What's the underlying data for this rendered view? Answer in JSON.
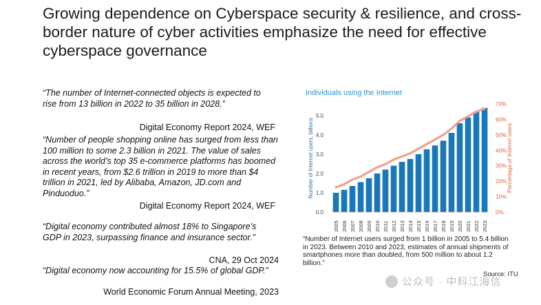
{
  "title": "Growing dependence on Cyberspace security & resilience, and cross-border nature of cyber activities emphasize the need for effective cyberspace governance",
  "quotes": [
    {
      "text": "“The number of Internet-connected objects is expected to rise from 13 billion in 2022 to 35 billion in 2028.”",
      "source": "Digital Economy Report 2024, WEF"
    },
    {
      "text": "“Number of people shopping online has surged from less than 100 million to some 2.3 billion in 2021. The value of sales across the world’s top 35 e-commerce platforms has boomed in recent years, from $2.6 trillion in 2019 to more than $4 trillion in 2021, led by Alibaba, Amazon, JD.com and Pinduoduo.”",
      "source": "Digital Economy Report 2024, WEF"
    },
    {
      "text": "“Digital economy contributed almost 18% to Singapore’s GDP in 2023, surpassing finance and insurance sector.”",
      "source": "CNA, 29 Oct 2024"
    },
    {
      "text": "“Digital economy now accounting for 15.5% of global GDP.”",
      "source": "World Economic Forum Annual Meeting, 2023"
    }
  ],
  "chart_data": {
    "type": "bar",
    "title": "Individuals using the Internet",
    "categories": [
      "2005",
      "2006",
      "2007",
      "2008",
      "2009",
      "2010",
      "2011",
      "2012",
      "2013",
      "2014",
      "2015",
      "2016",
      "2017",
      "2018",
      "2019",
      "2020",
      "2021",
      "2022",
      "2023"
    ],
    "series": [
      {
        "name": "Number of Internet users, billions",
        "type": "bar",
        "axis": "left",
        "values": [
          1.0,
          1.15,
          1.35,
          1.55,
          1.75,
          2.0,
          2.2,
          2.4,
          2.6,
          2.75,
          3.0,
          3.25,
          3.45,
          3.7,
          4.1,
          4.6,
          4.9,
          5.2,
          5.4
        ]
      },
      {
        "name": "Percentage of Internet users",
        "type": "line",
        "axis": "right",
        "values": [
          16,
          18,
          21,
          23,
          26,
          29,
          31,
          34,
          36,
          38,
          41,
          44,
          47,
          50,
          54,
          59,
          62,
          65,
          67
        ]
      }
    ],
    "ylabel": "Number of Internet users, billions",
    "y2label": "Percentage of Internet users",
    "ylim": [
      0,
      5.6
    ],
    "y2lim": [
      0,
      70
    ],
    "yticks": [
      "0.0",
      "1.0",
      "2.0",
      "3.0",
      "4.0",
      "5.0"
    ],
    "y2ticks": [
      "0%",
      "10%",
      "20%",
      "30%",
      "40%",
      "50%",
      "60%",
      "70%"
    ],
    "colors": {
      "bar": "#1a78b8",
      "line": "#f0a08c",
      "y2text": "#e0603a",
      "title": "#2f8fd4"
    }
  },
  "chart_caption": "“Number of Internet users surged from 1 billion in 2005 to 5.4 billion in 2023. Between 2010 and 2023, estimates of annual shipments of smartphones more than doubled, from 500 million to about 1.2 billion.”",
  "chart_source": "Source: ITU",
  "watermark": "公众号 · 中科江海信"
}
